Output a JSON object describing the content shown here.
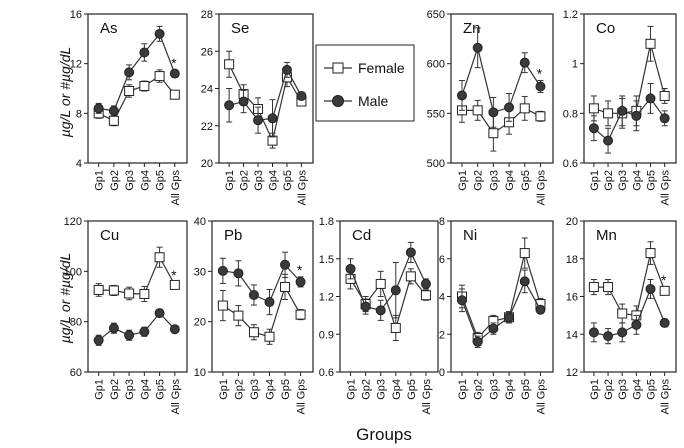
{
  "figure": {
    "ylabel_top": "µg/L or #µg/dL",
    "ylabel_bottom": "µg/L or #µg/dL",
    "xlabel": "Groups",
    "legend": {
      "female": "Female",
      "male": "Male"
    },
    "star": "*",
    "colors": {
      "female_fill": "#ffffff",
      "male_fill": "#3a3a3a",
      "line": "#333333"
    }
  },
  "chart_data": [
    {
      "type": "line",
      "title": "As",
      "categories": [
        "Gp1",
        "Gp2",
        "Gp3",
        "Gp4",
        "Gp5",
        "All Gps"
      ],
      "ylim": [
        4,
        16
      ],
      "yticks": [
        4,
        8,
        12,
        16
      ],
      "star": true,
      "series": [
        {
          "name": "Female",
          "values": [
            8.0,
            7.4,
            9.8,
            10.2,
            11.0,
            9.5
          ],
          "errors": [
            0.4,
            0.4,
            0.5,
            0.4,
            0.5,
            0.3
          ]
        },
        {
          "name": "Male",
          "values": [
            8.4,
            8.2,
            11.3,
            12.9,
            14.4,
            11.2
          ],
          "errors": [
            0.4,
            0.4,
            0.6,
            0.7,
            0.6,
            0.3
          ]
        }
      ]
    },
    {
      "type": "line",
      "title": "Se",
      "categories": [
        "Gp1",
        "Gp2",
        "Gp3",
        "Gp4",
        "Gp5",
        "All Gps"
      ],
      "ylim": [
        20,
        28
      ],
      "yticks": [
        20,
        22,
        24,
        26,
        28
      ],
      "star": false,
      "series": [
        {
          "name": "Female",
          "values": [
            25.3,
            23.7,
            22.9,
            21.2,
            24.6,
            23.3
          ],
          "errors": [
            0.7,
            0.5,
            0.6,
            0.4,
            0.5,
            0.2
          ]
        },
        {
          "name": "Male",
          "values": [
            23.1,
            23.3,
            22.3,
            22.4,
            25.0,
            23.6
          ],
          "errors": [
            0.9,
            0.6,
            0.7,
            1.0,
            0.4,
            0.2
          ]
        }
      ]
    },
    {
      "type": "line",
      "title": "Zn",
      "categories": [
        "Gp1",
        "Gp2",
        "Gp3",
        "Gp4",
        "Gp5",
        "All Gps"
      ],
      "ylim": [
        500,
        650
      ],
      "yticks": [
        500,
        550,
        600,
        650
      ],
      "star": true,
      "series": [
        {
          "name": "Female",
          "values": [
            553,
            553,
            530,
            541,
            555,
            547
          ],
          "errors": [
            12,
            10,
            18,
            12,
            12,
            5
          ]
        },
        {
          "name": "Male",
          "values": [
            568,
            616,
            551,
            556,
            601,
            577
          ],
          "errors": [
            15,
            20,
            15,
            14,
            10,
            6
          ]
        }
      ]
    },
    {
      "type": "line",
      "title": "Co",
      "categories": [
        "Gp1",
        "Gp2",
        "Gp3",
        "Gp4",
        "Gp5",
        "All Gps"
      ],
      "ylim": [
        0.6,
        1.2
      ],
      "yticks": [
        0.6,
        0.8,
        1,
        1.2
      ],
      "star": false,
      "series": [
        {
          "name": "Female",
          "values": [
            0.82,
            0.8,
            0.8,
            0.81,
            1.08,
            0.87
          ],
          "errors": [
            0.05,
            0.05,
            0.06,
            0.06,
            0.07,
            0.03
          ]
        },
        {
          "name": "Male",
          "values": [
            0.74,
            0.69,
            0.81,
            0.79,
            0.86,
            0.78
          ],
          "errors": [
            0.05,
            0.05,
            0.06,
            0.06,
            0.06,
            0.03
          ]
        }
      ]
    },
    {
      "type": "line",
      "title": "Cu",
      "categories": [
        "Gp1",
        "Gp2",
        "Gp3",
        "Gp4",
        "Gp5",
        "All Gps"
      ],
      "ylim": [
        60,
        120
      ],
      "yticks": [
        60,
        80,
        100,
        120
      ],
      "star": true,
      "series": [
        {
          "name": "Female",
          "values": [
            92.6,
            92.4,
            91.2,
            91.0,
            105.6,
            94.6
          ],
          "errors": [
            2.5,
            2.0,
            2.5,
            3.0,
            4.0,
            1.2
          ]
        },
        {
          "name": "Male",
          "values": [
            72.6,
            77.4,
            74.6,
            76.0,
            83.4,
            77.0
          ],
          "errors": [
            2.0,
            2.0,
            2.0,
            1.8,
            1.5,
            1.0
          ]
        }
      ]
    },
    {
      "type": "line",
      "title": "Pb",
      "categories": [
        "Gp1",
        "Gp2",
        "Gp3",
        "Gp4",
        "Gp5",
        "All Gps"
      ],
      "ylim": [
        10,
        40
      ],
      "yticks": [
        10,
        20,
        30,
        40
      ],
      "star": true,
      "series": [
        {
          "name": "Female",
          "values": [
            23.2,
            21.2,
            17.9,
            17.0,
            26.9,
            21.4
          ],
          "errors": [
            3.0,
            2.0,
            1.5,
            1.5,
            2.5,
            1.0
          ]
        },
        {
          "name": "Male",
          "values": [
            30.1,
            29.6,
            25.3,
            23.9,
            31.3,
            27.9
          ],
          "errors": [
            2.5,
            2.5,
            2.0,
            2.5,
            2.5,
            1.0
          ]
        }
      ]
    },
    {
      "type": "line",
      "title": "Cd",
      "categories": [
        "Gp1",
        "Gp2",
        "Gp3",
        "Gp4",
        "Gp5",
        "All Gps"
      ],
      "ylim": [
        0.6,
        1.8
      ],
      "yticks": [
        0.6,
        0.9,
        1.2,
        1.5,
        1.8
      ],
      "star": false,
      "series": [
        {
          "name": "Female",
          "values": [
            1.34,
            1.14,
            1.3,
            0.95,
            1.36,
            1.21
          ],
          "errors": [
            0.08,
            0.06,
            0.1,
            0.1,
            0.06,
            0.04
          ]
        },
        {
          "name": "Male",
          "values": [
            1.42,
            1.12,
            1.09,
            1.25,
            1.55,
            1.3
          ],
          "errors": [
            0.08,
            0.06,
            0.08,
            0.22,
            0.08,
            0.04
          ]
        }
      ]
    },
    {
      "type": "line",
      "title": "Ni",
      "categories": [
        "Gp1",
        "Gp2",
        "Gp3",
        "Gp4",
        "Gp5",
        "All Gps"
      ],
      "ylim": [
        0,
        8
      ],
      "yticks": [
        0,
        2,
        4,
        6,
        8
      ],
      "star": false,
      "series": [
        {
          "name": "Female",
          "values": [
            4.0,
            1.8,
            2.7,
            2.9,
            6.3,
            3.6
          ],
          "errors": [
            0.6,
            0.3,
            0.3,
            0.3,
            0.8,
            0.3
          ]
        },
        {
          "name": "Male",
          "values": [
            3.8,
            1.6,
            2.3,
            2.9,
            4.8,
            3.3
          ],
          "errors": [
            0.6,
            0.3,
            0.3,
            0.3,
            0.6,
            0.2
          ]
        }
      ]
    },
    {
      "type": "line",
      "title": "Mn",
      "categories": [
        "Gp1",
        "Gp2",
        "Gp3",
        "Gp4",
        "Gp5",
        "All Gps"
      ],
      "ylim": [
        12,
        20
      ],
      "yticks": [
        12,
        14,
        16,
        18,
        20
      ],
      "star": true,
      "series": [
        {
          "name": "Female",
          "values": [
            16.5,
            16.5,
            15.1,
            15.0,
            18.3,
            16.3
          ],
          "errors": [
            0.4,
            0.4,
            0.5,
            0.5,
            0.6,
            0.2
          ]
        },
        {
          "name": "Male",
          "values": [
            14.1,
            13.9,
            14.1,
            14.5,
            16.4,
            14.6
          ],
          "errors": [
            0.5,
            0.4,
            0.5,
            0.5,
            0.5,
            0.2
          ]
        }
      ]
    }
  ]
}
